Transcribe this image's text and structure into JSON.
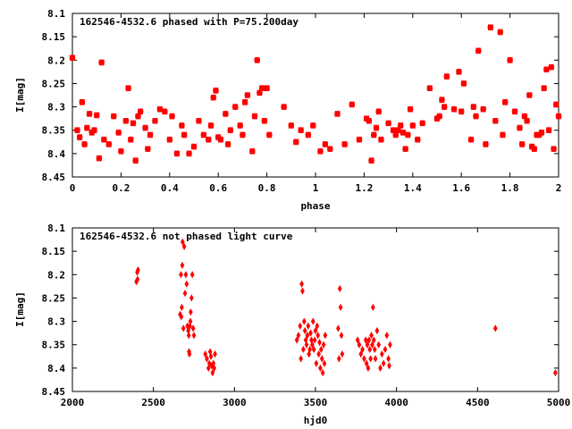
{
  "marker_color": "#ff0000",
  "axis_color": "#000000",
  "chart_data": [
    {
      "type": "scatter",
      "title": "162546-4532.6 phased with P=75.200day",
      "xlabel": "phase",
      "ylabel": "I[mag]",
      "xlim": [
        0,
        2
      ],
      "ylim": [
        8.45,
        8.1
      ],
      "y_inverted": true,
      "grid": false,
      "legend": "none",
      "xticks": [
        "0",
        "0.2",
        "0.4",
        "0.6",
        "0.8",
        "1",
        "1.2",
        "1.4",
        "1.6",
        "1.8",
        "2"
      ],
      "yticks": [
        "8.1",
        "8.15",
        "8.2",
        "8.25",
        "8.3",
        "8.35",
        "8.4",
        "8.45"
      ],
      "x": [
        0.0,
        0.02,
        0.03,
        0.04,
        0.05,
        0.06,
        0.07,
        0.08,
        0.09,
        0.1,
        0.11,
        0.12,
        0.13,
        0.15,
        0.17,
        0.19,
        0.2,
        0.22,
        0.23,
        0.24,
        0.25,
        0.26,
        0.27,
        0.28,
        0.3,
        0.31,
        0.32,
        0.34,
        0.36,
        0.38,
        0.4,
        0.41,
        0.43,
        0.45,
        0.46,
        0.48,
        0.5,
        0.52,
        0.54,
        0.56,
        0.57,
        0.58,
        0.59,
        0.6,
        0.61,
        0.63,
        0.64,
        0.65,
        0.67,
        0.69,
        0.7,
        0.71,
        0.72,
        0.74,
        0.75,
        0.76,
        0.77,
        0.78,
        0.79,
        0.8,
        0.81,
        0.87,
        0.9,
        0.92,
        0.94,
        0.97,
        0.99,
        1.02,
        1.04,
        1.06,
        1.09,
        1.12,
        1.15,
        1.18,
        1.21,
        1.22,
        1.23,
        1.24,
        1.25,
        1.26,
        1.27,
        1.3,
        1.32,
        1.33,
        1.34,
        1.35,
        1.36,
        1.37,
        1.38,
        1.39,
        1.4,
        1.42,
        1.44,
        1.47,
        1.5,
        1.51,
        1.52,
        1.53,
        1.54,
        1.57,
        1.59,
        1.6,
        1.61,
        1.64,
        1.65,
        1.66,
        1.67,
        1.69,
        1.7,
        1.72,
        1.74,
        1.76,
        1.77,
        1.78,
        1.8,
        1.82,
        1.84,
        1.85,
        1.86,
        1.87,
        1.88,
        1.89,
        1.9,
        1.91,
        1.92,
        1.93,
        1.94,
        1.95,
        1.96,
        1.97,
        1.98,
        1.99,
        2.0
      ],
      "y": [
        8.195,
        8.35,
        8.365,
        8.29,
        8.38,
        8.345,
        8.315,
        8.355,
        8.35,
        8.318,
        8.41,
        8.205,
        8.37,
        8.38,
        8.32,
        8.355,
        8.395,
        8.33,
        8.26,
        8.37,
        8.335,
        8.415,
        8.32,
        8.31,
        8.345,
        8.39,
        8.36,
        8.33,
        8.305,
        8.31,
        8.37,
        8.32,
        8.4,
        8.34,
        8.36,
        8.4,
        8.385,
        8.33,
        8.36,
        8.37,
        8.34,
        8.28,
        8.265,
        8.365,
        8.37,
        8.315,
        8.38,
        8.35,
        8.3,
        8.34,
        8.36,
        8.29,
        8.275,
        8.395,
        8.32,
        8.2,
        8.27,
        8.26,
        8.33,
        8.26,
        8.36,
        8.3,
        8.34,
        8.375,
        8.35,
        8.36,
        8.34,
        8.395,
        8.38,
        8.39,
        8.315,
        8.38,
        8.295,
        8.37,
        8.325,
        8.33,
        8.415,
        8.36,
        8.345,
        8.31,
        8.37,
        8.335,
        8.35,
        8.36,
        8.35,
        8.34,
        8.355,
        8.39,
        8.36,
        8.305,
        8.34,
        8.37,
        8.335,
        8.26,
        8.325,
        8.32,
        8.285,
        8.3,
        8.235,
        8.305,
        8.225,
        8.31,
        8.25,
        8.37,
        8.3,
        8.32,
        8.18,
        8.305,
        8.38,
        8.13,
        8.33,
        8.14,
        8.36,
        8.29,
        8.2,
        8.31,
        8.345,
        8.38,
        8.32,
        8.33,
        8.275,
        8.385,
        8.39,
        8.36,
        8.36,
        8.355,
        8.26,
        8.22,
        8.35,
        8.215,
        8.39,
        8.295,
        8.32
      ],
      "marker": "filled-square"
    },
    {
      "type": "scatter",
      "title": "162546-4532.6 not phased light curve",
      "xlabel": "hjd0",
      "ylabel": "I[mag]",
      "xlim": [
        2000,
        5000
      ],
      "ylim": [
        8.45,
        8.1
      ],
      "y_inverted": true,
      "grid": false,
      "legend": "none",
      "xticks": [
        "2000",
        "2500",
        "3000",
        "3500",
        "4000",
        "4500",
        "5000"
      ],
      "yticks": [
        "8.1",
        "8.15",
        "8.2",
        "8.25",
        "8.3",
        "8.35",
        "8.4",
        "8.45"
      ],
      "x": [
        2395,
        2400,
        2402,
        2405,
        2665,
        2670,
        2672,
        2675,
        2678,
        2680,
        2685,
        2690,
        2695,
        2700,
        2705,
        2710,
        2715,
        2718,
        2720,
        2722,
        2725,
        2728,
        2730,
        2735,
        2740,
        2745,
        2750,
        2820,
        2830,
        2840,
        2845,
        2850,
        2855,
        2860,
        2865,
        2870,
        2875,
        2880,
        3385,
        3395,
        3405,
        3410,
        3415,
        3420,
        3425,
        3430,
        3435,
        3440,
        3445,
        3450,
        3455,
        3460,
        3465,
        3470,
        3475,
        3480,
        3485,
        3490,
        3495,
        3500,
        3505,
        3510,
        3515,
        3520,
        3525,
        3530,
        3535,
        3540,
        3545,
        3550,
        3555,
        3560,
        3640,
        3645,
        3650,
        3655,
        3660,
        3665,
        3760,
        3770,
        3780,
        3790,
        3800,
        3810,
        3815,
        3820,
        3825,
        3830,
        3835,
        3840,
        3845,
        3850,
        3855,
        3860,
        3865,
        3870,
        3880,
        3890,
        3900,
        3910,
        3920,
        3930,
        3940,
        3950,
        3955,
        3960,
        4610,
        4980
      ],
      "y": [
        8.215,
        8.195,
        8.21,
        8.19,
        8.285,
        8.2,
        8.29,
        8.27,
        8.18,
        8.13,
        8.315,
        8.14,
        8.24,
        8.2,
        8.22,
        8.31,
        8.32,
        8.33,
        8.365,
        8.37,
        8.31,
        8.3,
        8.28,
        8.25,
        8.2,
        8.315,
        8.33,
        8.37,
        8.38,
        8.4,
        8.39,
        8.365,
        8.375,
        8.395,
        8.41,
        8.39,
        8.4,
        8.37,
        8.34,
        8.33,
        8.31,
        8.38,
        8.22,
        8.235,
        8.36,
        8.3,
        8.32,
        8.34,
        8.35,
        8.33,
        8.31,
        8.37,
        8.36,
        8.325,
        8.34,
        8.35,
        8.3,
        8.36,
        8.34,
        8.32,
        8.39,
        8.31,
        8.33,
        8.37,
        8.345,
        8.4,
        8.36,
        8.38,
        8.41,
        8.35,
        8.39,
        8.33,
        8.315,
        8.38,
        8.23,
        8.27,
        8.33,
        8.37,
        8.34,
        8.35,
        8.37,
        8.36,
        8.38,
        8.34,
        8.39,
        8.35,
        8.4,
        8.34,
        8.36,
        8.38,
        8.33,
        8.35,
        8.27,
        8.34,
        8.36,
        8.38,
        8.32,
        8.35,
        8.4,
        8.37,
        8.39,
        8.36,
        8.33,
        8.38,
        8.395,
        8.35,
        8.315,
        8.41
      ],
      "marker": "filled-diamond"
    }
  ]
}
